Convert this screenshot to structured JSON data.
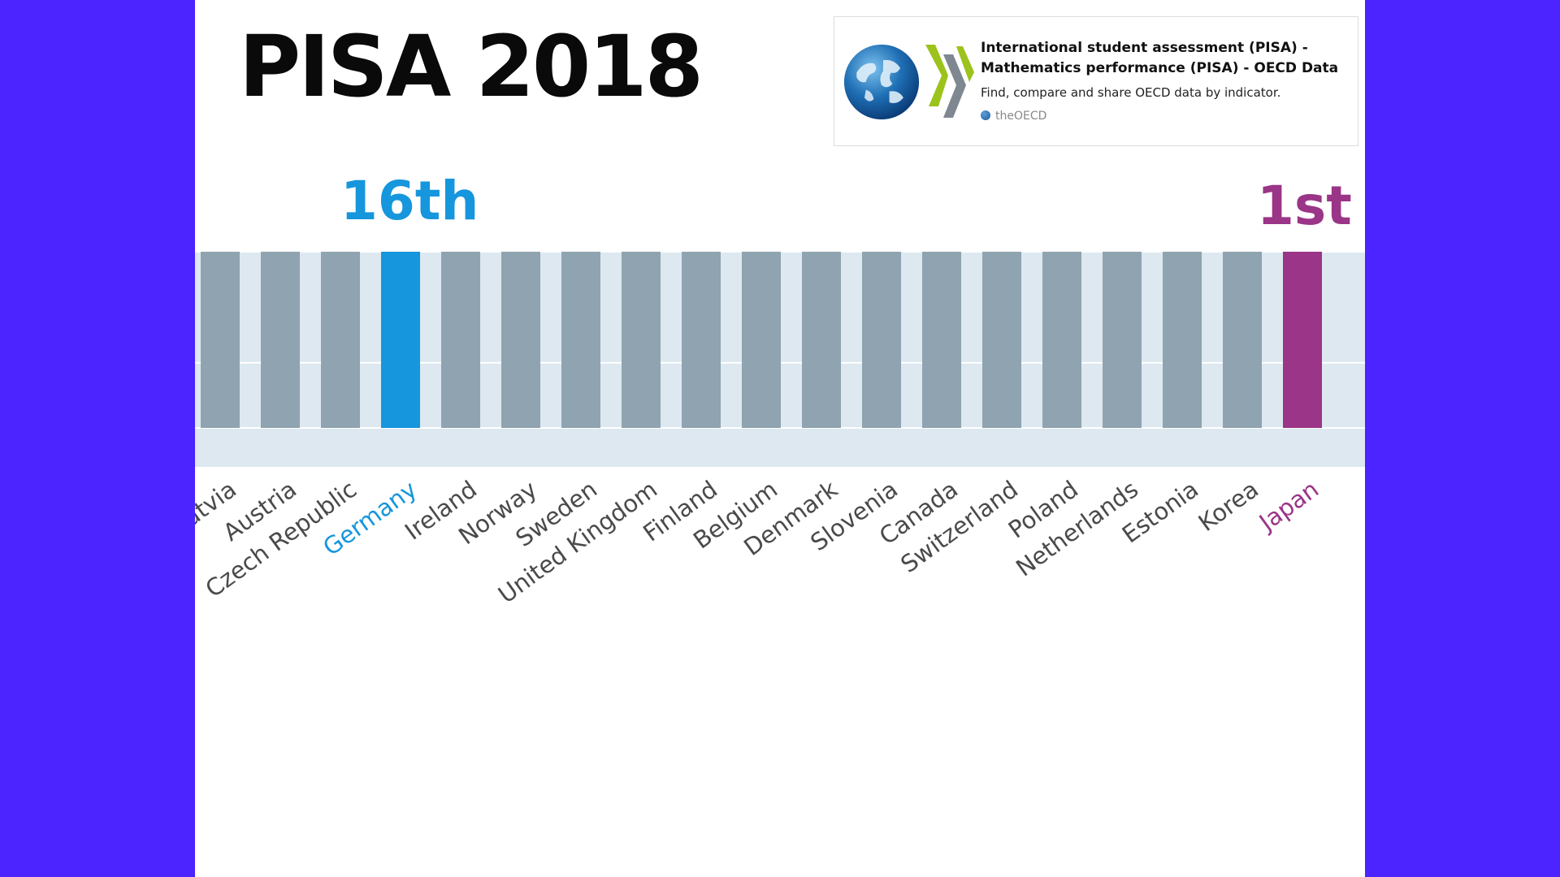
{
  "slide": {
    "title": "PISA 2018"
  },
  "link_card": {
    "title": "International student assessment (PISA) - Mathematics performance (PISA) - OECD Data",
    "description": "Find, compare and share OECD data by indicator.",
    "source": "theOECD",
    "icons": [
      "globe-icon",
      "oecd-chevrons-icon"
    ]
  },
  "ranks": {
    "germany": {
      "label": "16th",
      "color": "#1696dc"
    },
    "japan": {
      "label": "1st",
      "color": "#9a3587"
    }
  },
  "chart_data": {
    "type": "bar",
    "title": "",
    "xlabel": "",
    "ylabel": "",
    "categories": [
      "Latvia",
      "Austria",
      "Czech Republic",
      "Germany",
      "Ireland",
      "Norway",
      "Sweden",
      "United Kingdom",
      "Finland",
      "Belgium",
      "Denmark",
      "Slovenia",
      "Canada",
      "Switzerland",
      "Poland",
      "Netherlands",
      "Estonia",
      "Korea",
      "Japan"
    ],
    "values": [
      100,
      100,
      100,
      100,
      100,
      100,
      100,
      100,
      100,
      100,
      100,
      100,
      100,
      100,
      100,
      100,
      100,
      100,
      100
    ],
    "highlight": {
      "Germany": "#1696dc",
      "Japan": "#9a3587"
    },
    "bar_color": "#8fa4b0",
    "background_color": "#dde8f0",
    "grid": true
  }
}
